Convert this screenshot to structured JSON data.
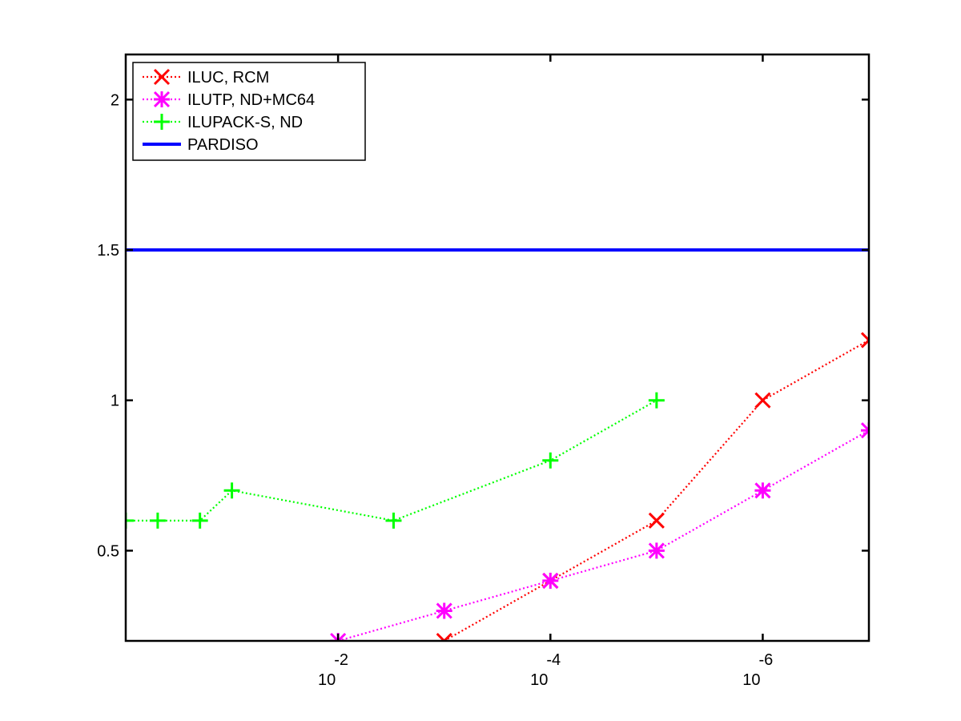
{
  "chart_data": {
    "type": "line",
    "xscale": "log",
    "xreversed": true,
    "xlim": [
      1,
      1e-07
    ],
    "ylim": [
      0.2,
      2.15
    ],
    "yticks": [
      {
        "value": 0.5,
        "label": "0.5"
      },
      {
        "value": 1,
        "label": "1"
      },
      {
        "value": 1.5,
        "label": "1.5"
      },
      {
        "value": 2,
        "label": "2"
      }
    ],
    "xticks": [
      {
        "value": 0.01,
        "base": "10",
        "exp": "-2"
      },
      {
        "value": 0.0001,
        "base": "10",
        "exp": "-4"
      },
      {
        "value": 1e-06,
        "base": "10",
        "exp": "-6"
      }
    ],
    "grid": false,
    "legend_position": "top-left",
    "series": [
      {
        "name": "ILUC, RCM",
        "color": "#ff0000",
        "marker": "x",
        "linestyle": "dotted",
        "x": [
          0.001,
          0.0001,
          1e-05,
          1e-06,
          1e-07
        ],
        "y": [
          0.2,
          0.4,
          0.6,
          1.0,
          1.2
        ]
      },
      {
        "name": "ILUTP,  ND+MC64",
        "color": "#ff00ff",
        "marker": "asterisk",
        "linestyle": "dotted",
        "x": [
          0.01,
          0.001,
          0.0001,
          1e-05,
          1e-06,
          1e-07
        ],
        "y": [
          0.2,
          0.3,
          0.4,
          0.5,
          0.7,
          0.9
        ]
      },
      {
        "name": "ILUPACK-S, ND",
        "color": "#00ff00",
        "marker": "plus",
        "linestyle": "dotted",
        "x": [
          1,
          0.5,
          0.2,
          0.1,
          0.003,
          0.0001,
          1e-05
        ],
        "y": [
          0.6,
          0.6,
          0.6,
          0.7,
          0.6,
          0.8,
          1.0
        ]
      },
      {
        "name": "PARDISO",
        "color": "#0000ff",
        "marker": "none",
        "linestyle": "solid",
        "x": [
          1,
          1e-07
        ],
        "y": [
          1.5,
          1.5
        ]
      }
    ]
  }
}
